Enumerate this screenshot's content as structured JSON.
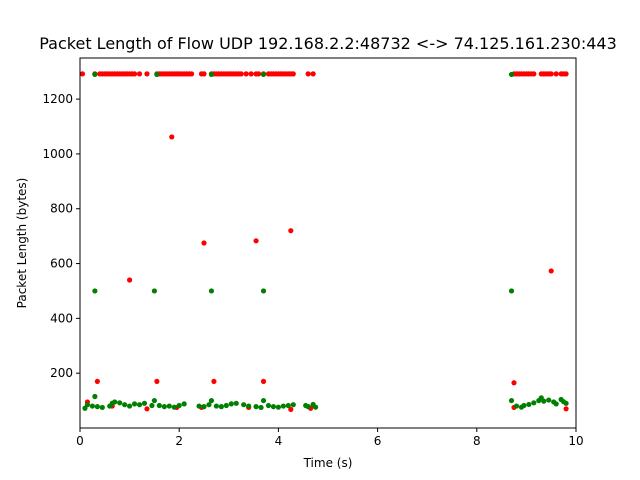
{
  "chart_data": {
    "type": "scatter",
    "title": "Packet Length of Flow UDP 192.168.2.2:48732 <-> 74.125.161.230:443",
    "xlabel": "Time (s)",
    "ylabel": "Packet Length (bytes)",
    "xlim": [
      0,
      10
    ],
    "ylim": [
      0,
      1350
    ],
    "xticks": [
      0,
      2,
      4,
      6,
      8,
      10
    ],
    "yticks": [
      200,
      400,
      600,
      800,
      1000,
      1200
    ],
    "grid": false,
    "legend": "none",
    "series": [
      {
        "color": "#ff0000",
        "points": [
          [
            0.05,
            1292
          ],
          [
            0.3,
            1292
          ],
          [
            0.4,
            1292
          ],
          [
            0.45,
            1292
          ],
          [
            0.5,
            1292
          ],
          [
            0.55,
            1292
          ],
          [
            0.6,
            1292
          ],
          [
            0.65,
            1292
          ],
          [
            0.7,
            1292
          ],
          [
            0.75,
            1292
          ],
          [
            0.8,
            1292
          ],
          [
            0.85,
            1292
          ],
          [
            0.9,
            1292
          ],
          [
            0.95,
            1292
          ],
          [
            1.0,
            1292
          ],
          [
            1.05,
            1292
          ],
          [
            1.1,
            1292
          ],
          [
            1.2,
            1292
          ],
          [
            1.35,
            1292
          ],
          [
            1.55,
            1292
          ],
          [
            1.6,
            1292
          ],
          [
            1.65,
            1292
          ],
          [
            1.7,
            1292
          ],
          [
            1.75,
            1292
          ],
          [
            1.8,
            1292
          ],
          [
            1.85,
            1292
          ],
          [
            1.9,
            1292
          ],
          [
            1.95,
            1292
          ],
          [
            2.0,
            1292
          ],
          [
            2.05,
            1292
          ],
          [
            2.1,
            1292
          ],
          [
            2.15,
            1292
          ],
          [
            2.2,
            1292
          ],
          [
            2.25,
            1292
          ],
          [
            2.45,
            1292
          ],
          [
            2.5,
            1292
          ],
          [
            2.65,
            1292
          ],
          [
            2.7,
            1292
          ],
          [
            2.75,
            1292
          ],
          [
            2.8,
            1292
          ],
          [
            2.85,
            1292
          ],
          [
            2.9,
            1292
          ],
          [
            2.95,
            1292
          ],
          [
            3.0,
            1292
          ],
          [
            3.05,
            1292
          ],
          [
            3.1,
            1292
          ],
          [
            3.15,
            1292
          ],
          [
            3.2,
            1292
          ],
          [
            3.25,
            1292
          ],
          [
            3.35,
            1292
          ],
          [
            3.45,
            1292
          ],
          [
            3.55,
            1292
          ],
          [
            3.6,
            1292
          ],
          [
            3.7,
            1292
          ],
          [
            3.8,
            1292
          ],
          [
            3.85,
            1292
          ],
          [
            3.9,
            1292
          ],
          [
            3.95,
            1292
          ],
          [
            4.0,
            1292
          ],
          [
            4.05,
            1292
          ],
          [
            4.1,
            1292
          ],
          [
            4.15,
            1292
          ],
          [
            4.2,
            1292
          ],
          [
            4.25,
            1292
          ],
          [
            4.3,
            1292
          ],
          [
            4.6,
            1292
          ],
          [
            4.7,
            1292
          ],
          [
            8.75,
            1292
          ],
          [
            8.8,
            1292
          ],
          [
            8.85,
            1292
          ],
          [
            8.9,
            1292
          ],
          [
            8.95,
            1292
          ],
          [
            9.0,
            1292
          ],
          [
            9.05,
            1292
          ],
          [
            9.1,
            1292
          ],
          [
            9.15,
            1292
          ],
          [
            9.3,
            1292
          ],
          [
            9.35,
            1292
          ],
          [
            9.4,
            1292
          ],
          [
            9.45,
            1292
          ],
          [
            9.5,
            1292
          ],
          [
            9.6,
            1292
          ],
          [
            9.7,
            1292
          ],
          [
            9.75,
            1292
          ],
          [
            9.8,
            1292
          ],
          [
            1.85,
            1062
          ],
          [
            2.5,
            675
          ],
          [
            3.55,
            683
          ],
          [
            4.25,
            720
          ],
          [
            1.0,
            540
          ],
          [
            9.5,
            573
          ],
          [
            0.35,
            170
          ],
          [
            1.55,
            170
          ],
          [
            2.7,
            170
          ],
          [
            3.7,
            170
          ],
          [
            8.75,
            165
          ],
          [
            0.15,
            95
          ],
          [
            0.65,
            80
          ],
          [
            1.35,
            70
          ],
          [
            1.95,
            75
          ],
          [
            2.45,
            75
          ],
          [
            3.4,
            75
          ],
          [
            4.25,
            68
          ],
          [
            4.65,
            72
          ],
          [
            8.75,
            75
          ],
          [
            9.8,
            70
          ]
        ]
      },
      {
        "color": "#008000",
        "points": [
          [
            0.3,
            1290
          ],
          [
            1.55,
            1290
          ],
          [
            2.65,
            1290
          ],
          [
            3.7,
            1290
          ],
          [
            8.7,
            1290
          ],
          [
            0.3,
            500
          ],
          [
            1.5,
            500
          ],
          [
            2.65,
            500
          ],
          [
            3.7,
            500
          ],
          [
            8.7,
            500
          ],
          [
            0.3,
            115
          ],
          [
            1.5,
            100
          ],
          [
            2.65,
            100
          ],
          [
            3.7,
            100
          ],
          [
            8.7,
            100
          ],
          [
            0.1,
            72
          ],
          [
            0.15,
            85
          ],
          [
            0.25,
            80
          ],
          [
            0.35,
            78
          ],
          [
            0.45,
            75
          ],
          [
            0.6,
            80
          ],
          [
            0.65,
            90
          ],
          [
            0.7,
            95
          ],
          [
            0.8,
            92
          ],
          [
            0.9,
            85
          ],
          [
            1.0,
            80
          ],
          [
            1.1,
            88
          ],
          [
            1.2,
            85
          ],
          [
            1.3,
            90
          ],
          [
            1.45,
            82
          ],
          [
            1.6,
            82
          ],
          [
            1.7,
            78
          ],
          [
            1.8,
            80
          ],
          [
            1.9,
            76
          ],
          [
            2.0,
            82
          ],
          [
            2.1,
            88
          ],
          [
            2.4,
            80
          ],
          [
            2.5,
            78
          ],
          [
            2.6,
            85
          ],
          [
            2.75,
            80
          ],
          [
            2.85,
            78
          ],
          [
            2.95,
            82
          ],
          [
            3.05,
            88
          ],
          [
            3.15,
            90
          ],
          [
            3.3,
            85
          ],
          [
            3.4,
            80
          ],
          [
            3.55,
            78
          ],
          [
            3.65,
            75
          ],
          [
            3.8,
            82
          ],
          [
            3.9,
            78
          ],
          [
            4.0,
            76
          ],
          [
            4.1,
            80
          ],
          [
            4.2,
            82
          ],
          [
            4.3,
            85
          ],
          [
            4.55,
            82
          ],
          [
            4.6,
            78
          ],
          [
            4.7,
            86
          ],
          [
            4.75,
            76
          ],
          [
            8.8,
            80
          ],
          [
            8.9,
            76
          ],
          [
            8.95,
            82
          ],
          [
            9.05,
            86
          ],
          [
            9.15,
            92
          ],
          [
            9.25,
            100
          ],
          [
            9.3,
            110
          ],
          [
            9.35,
            98
          ],
          [
            9.45,
            102
          ],
          [
            9.55,
            95
          ],
          [
            9.6,
            88
          ],
          [
            9.7,
            104
          ],
          [
            9.75,
            96
          ],
          [
            9.8,
            90
          ]
        ]
      }
    ]
  }
}
